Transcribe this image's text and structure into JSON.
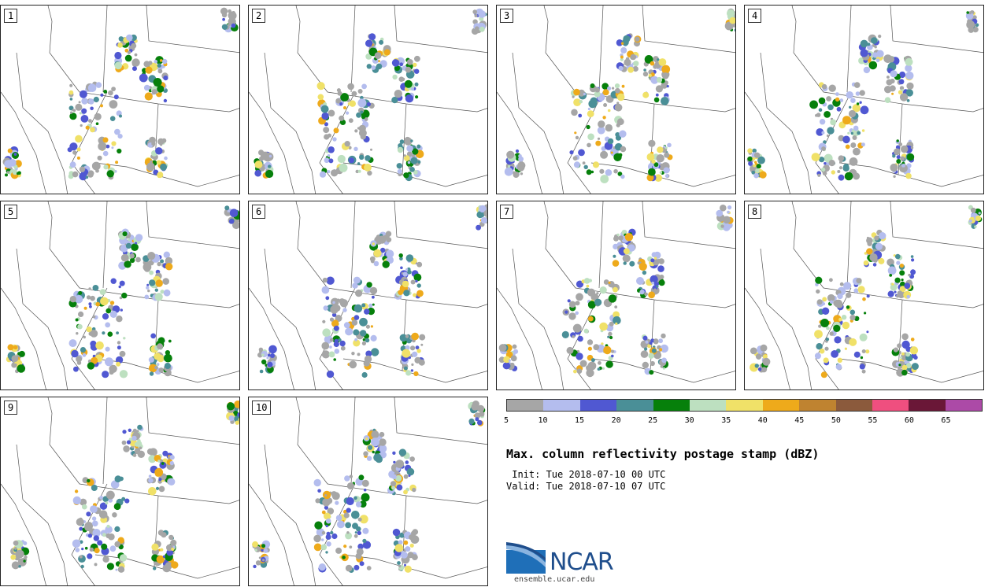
{
  "title": "Max. column reflectivity postage stamp (dBZ)",
  "init": " Init: Tue 2018-07-10 00 UTC",
  "valid": "Valid: Tue 2018-07-10 07 UTC",
  "members": [
    "1",
    "2",
    "3",
    "4",
    "5",
    "6",
    "7",
    "8",
    "9",
    "10"
  ],
  "colorbar": {
    "ticks": [
      "5",
      "10",
      "15",
      "20",
      "25",
      "30",
      "35",
      "40",
      "45",
      "50",
      "55",
      "60",
      "65"
    ],
    "colors": [
      "#a6a6a6",
      "#b4bdee",
      "#5058d2",
      "#4a8f97",
      "#06800b",
      "#bde0c0",
      "#f0e168",
      "#eeaa1b",
      "#bf8330",
      "#8b5a3c",
      "#ef4f7f",
      "#6a1737",
      "#ac4aa7"
    ]
  },
  "logo": {
    "name": "NCAR",
    "url": "ensemble.ucar.edu"
  }
}
